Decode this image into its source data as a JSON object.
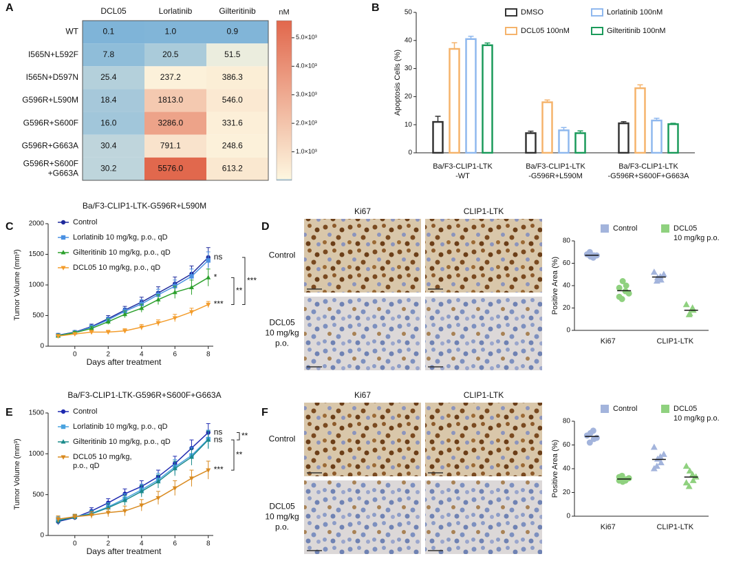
{
  "chart_data": [
    {
      "type": "heatmap",
      "panel": "A",
      "columns": [
        "DCL05",
        "Lorlatinib",
        "Gilteritinib"
      ],
      "rows": [
        [
          "WT"
        ],
        [
          "I565N+L592F"
        ],
        [
          "I565N+D597N"
        ],
        [
          "G596R+L590M"
        ],
        [
          "G596R+S600F"
        ],
        [
          "G596R+G663A"
        ],
        [
          "G596R+S600F",
          "+G663A"
        ]
      ],
      "values": [
        [
          0.1,
          1.0,
          0.9
        ],
        [
          7.8,
          20.5,
          51.5
        ],
        [
          25.4,
          237.2,
          386.3
        ],
        [
          18.4,
          1813.0,
          546.0
        ],
        [
          16.0,
          3286.0,
          331.6
        ],
        [
          30.4,
          791.1,
          248.6
        ],
        [
          30.2,
          5576.0,
          613.2
        ]
      ],
      "value_labels": [
        [
          "0.1",
          "1.0",
          "0.9"
        ],
        [
          "7.8",
          "20.5",
          "51.5"
        ],
        [
          "25.4",
          "237.2",
          "386.3"
        ],
        [
          "18.4",
          "1813.0",
          "546.0"
        ],
        [
          "16.0",
          "3286.0",
          "331.6"
        ],
        [
          "30.4",
          "791.1",
          "248.6"
        ],
        [
          "30.2",
          "5576.0",
          "613.2"
        ]
      ],
      "colorbar_label": "nM",
      "clim": [
        0,
        5600
      ],
      "colormap": [
        {
          "value": 0,
          "color": "#7fb4d8"
        },
        {
          "value": 60,
          "color": "#fdf6df"
        },
        {
          "value": 5600,
          "color": "#e1674c"
        }
      ],
      "cticks": [
        {
          "value": 1000,
          "label": "1.0×10³"
        },
        {
          "value": 2000,
          "label": "2.0×10³"
        },
        {
          "value": 3000,
          "label": "3.0×10³"
        },
        {
          "value": 4000,
          "label": "4.0×10³"
        },
        {
          "value": 5000,
          "label": "5.0×10³"
        }
      ]
    },
    {
      "type": "bar",
      "panel": "B",
      "y_label": "Apoptosis Cells (%)",
      "categories": [
        [
          "Ba/F3-CLIP1-LTK",
          "-WT"
        ],
        [
          "Ba/F3-CLIP1-LTK",
          "-G596R+L590M"
        ],
        [
          "Ba/F3-CLIP1-LTK",
          "-G596R+S600F+G663A"
        ]
      ],
      "ylim": [
        0,
        50
      ],
      "yticks": [
        0,
        10,
        20,
        30,
        40,
        50
      ],
      "series": [
        {
          "name": "DMSO",
          "color": "#333333",
          "values": [
            11,
            7,
            10.5
          ],
          "errors": [
            2,
            0.7,
            0.6
          ]
        },
        {
          "name": "DCL05 100nM",
          "color": "#f5b36b",
          "values": [
            37,
            18,
            23
          ],
          "errors": [
            2.2,
            0.8,
            1.2
          ]
        },
        {
          "name": "Lorlatinib 100nM",
          "color": "#8fb8ee",
          "values": [
            40.5,
            8,
            11.5
          ],
          "errors": [
            1,
            1,
            0.8
          ]
        },
        {
          "name": "Gilteritinib 100nM",
          "color": "#1a9a5a",
          "values": [
            38.3,
            7,
            10.2
          ],
          "errors": [
            0.8,
            0.8,
            0.3
          ]
        }
      ]
    },
    {
      "type": "line",
      "panel": "C",
      "title": "Ba/F3-CLIP1-LTK-G596R+L590M",
      "x_label": "Days after treatment",
      "y_label": "Tumor Volume (mm³)",
      "x": [
        -1,
        0,
        1,
        2,
        3,
        4,
        5,
        6,
        7,
        8
      ],
      "xlim": [
        -1.6,
        8.3
      ],
      "xticks": [
        0,
        2,
        4,
        6,
        8
      ],
      "ylim": [
        0,
        2000
      ],
      "yticks": [
        0,
        500,
        1000,
        1500,
        2000
      ],
      "series": [
        {
          "name": "Control",
          "color": "#1f2a9c",
          "marker": "circle",
          "values": [
            180,
            230,
            320,
            450,
            590,
            720,
            870,
            1020,
            1180,
            1450
          ],
          "errors": [
            30,
            25,
            40,
            50,
            60,
            80,
            100,
            110,
            130,
            160
          ],
          "end_label": "ns"
        },
        {
          "name": "Lorlatinib 10 mg/kg, p.o., qD",
          "color": "#4a90e2",
          "marker": "square",
          "values": [
            175,
            225,
            310,
            430,
            570,
            690,
            840,
            980,
            1140,
            1400
          ],
          "errors": [
            25,
            25,
            35,
            45,
            55,
            70,
            90,
            100,
            120,
            140
          ],
          "end_label": null
        },
        {
          "name": "Gilteritinib 10 mg/kg, p.o., qD",
          "color": "#2ca02c",
          "marker": "triangle",
          "values": [
            170,
            220,
            290,
            400,
            520,
            620,
            760,
            880,
            960,
            1120
          ],
          "errors": [
            25,
            20,
            35,
            45,
            55,
            65,
            80,
            100,
            120,
            140
          ],
          "end_label": "*"
        },
        {
          "name": "DCL05 10 mg/kg, p.o., qD",
          "color": "#f39c2b",
          "marker": "triangle-down",
          "values": [
            165,
            200,
            230,
            230,
            250,
            310,
            380,
            460,
            560,
            680
          ],
          "errors": [
            25,
            20,
            30,
            30,
            35,
            45,
            50,
            60,
            60,
            50
          ],
          "end_label": "***"
        }
      ],
      "brackets": [
        {
          "from": 0,
          "to": 3,
          "label": "***"
        },
        {
          "from": 2,
          "to": 3,
          "label": "**"
        }
      ]
    },
    {
      "type": "strip",
      "y_label": "Positive Area (%)",
      "categories": [
        "Ki67",
        "CLIP1-LTK"
      ],
      "markers": [
        "circle",
        "triangle"
      ],
      "ylim": [
        0,
        80
      ],
      "yticks": [
        0,
        20,
        40,
        60,
        80
      ],
      "series": [
        {
          "name": [
            "Control"
          ],
          "color": "#a3b4dc",
          "values": [
            [
              68,
              65,
              67,
              70,
              66,
              67
            ],
            [
              52,
              48,
              45,
              44,
              47,
              50
            ]
          ]
        },
        {
          "name": [
            "DCL05",
            "10 mg/kg p.o."
          ],
          "color": "#8fd17f",
          "values": [
            [
              30,
              35,
              40,
              28,
              44,
              33,
              38
            ],
            [
              23,
              20,
              18,
              14,
              15
            ]
          ]
        }
      ]
    },
    {
      "type": "line",
      "panel": "E",
      "title": "Ba/F3-CLIP1-LTK-G596R+S600F+G663A",
      "x_label": "Days after treatment",
      "y_label": "Tumor Volume (mm³)",
      "x": [
        -1,
        0,
        1,
        2,
        3,
        4,
        5,
        6,
        7,
        8
      ],
      "xlim": [
        -1.6,
        8.3
      ],
      "xticks": [
        0,
        2,
        4,
        6,
        8
      ],
      "ylim": [
        0,
        1500
      ],
      "yticks": [
        0,
        500,
        1000,
        1500
      ],
      "series": [
        {
          "name": [
            "Control"
          ],
          "color": "#1f2ab0",
          "marker": "circle",
          "values": [
            170,
            220,
            300,
            400,
            510,
            600,
            720,
            880,
            1070,
            1260
          ],
          "errors": [
            40,
            30,
            40,
            50,
            60,
            70,
            80,
            90,
            100,
            110
          ],
          "end_label": "ns"
        },
        {
          "name": [
            "Lorlatinib 10 mg/kg, p.o., qD"
          ],
          "color": "#4aa3df",
          "marker": "square",
          "values": [
            190,
            230,
            270,
            350,
            450,
            560,
            680,
            840,
            980,
            1180
          ],
          "errors": [
            40,
            30,
            40,
            50,
            60,
            70,
            80,
            90,
            100,
            110
          ],
          "end_label": null
        },
        {
          "name": [
            "Gilteritinib 10 mg/kg, p.o., qD"
          ],
          "color": "#1a8a8a",
          "marker": "triangle",
          "values": [
            180,
            225,
            265,
            340,
            430,
            540,
            660,
            820,
            960,
            1170
          ],
          "errors": [
            40,
            30,
            40,
            50,
            60,
            70,
            80,
            90,
            100,
            110
          ],
          "end_label": "ns"
        },
        {
          "name": [
            "DCL05 10 mg/kg,",
            "p.o., qD"
          ],
          "color": "#d98a1f",
          "marker": "triangle-down",
          "values": [
            200,
            230,
            250,
            280,
            300,
            370,
            460,
            580,
            700,
            800
          ],
          "errors": [
            40,
            30,
            40,
            50,
            60,
            70,
            80,
            90,
            100,
            110
          ],
          "end_label": "***"
        }
      ],
      "brackets": [
        {
          "from": 0,
          "to": 2,
          "label": "**"
        },
        {
          "from": 2,
          "to": 3,
          "label": "**"
        }
      ]
    },
    {
      "type": "strip",
      "y_label": "Positive Area (%)",
      "categories": [
        "Ki67",
        "CLIP1-LTK"
      ],
      "markers": [
        "circle",
        "triangle"
      ],
      "ylim": [
        0,
        80
      ],
      "yticks": [
        0,
        20,
        40,
        60,
        80
      ],
      "series": [
        {
          "name": [
            "Control"
          ],
          "color": "#a3b4dc",
          "values": [
            [
              68,
              72,
              65,
              62,
              70,
              66
            ],
            [
              58,
              50,
              45,
              42,
              48,
              52,
              40
            ]
          ]
        },
        {
          "name": [
            "DCL05",
            "10 mg/kg p.o."
          ],
          "color": "#8fd17f",
          "values": [
            [
              33,
              30,
              31,
              34,
              29,
              32,
              30
            ],
            [
              42,
              35,
              30,
              25,
              38,
              33,
              28
            ]
          ]
        }
      ]
    }
  ],
  "image_grids": [
    {
      "panel": "D",
      "columns": [
        "Ki67",
        "CLIP1-LTK"
      ],
      "rows": [
        [
          "Control"
        ],
        [
          "DCL05",
          "10 mg/kg",
          "p.o."
        ]
      ]
    },
    {
      "panel": "F",
      "columns": [
        "Ki67",
        "CLIP1-LTK"
      ],
      "rows": [
        [
          "Control"
        ],
        [
          "DCL05",
          "10 mg/kg",
          "p.o."
        ]
      ]
    }
  ]
}
